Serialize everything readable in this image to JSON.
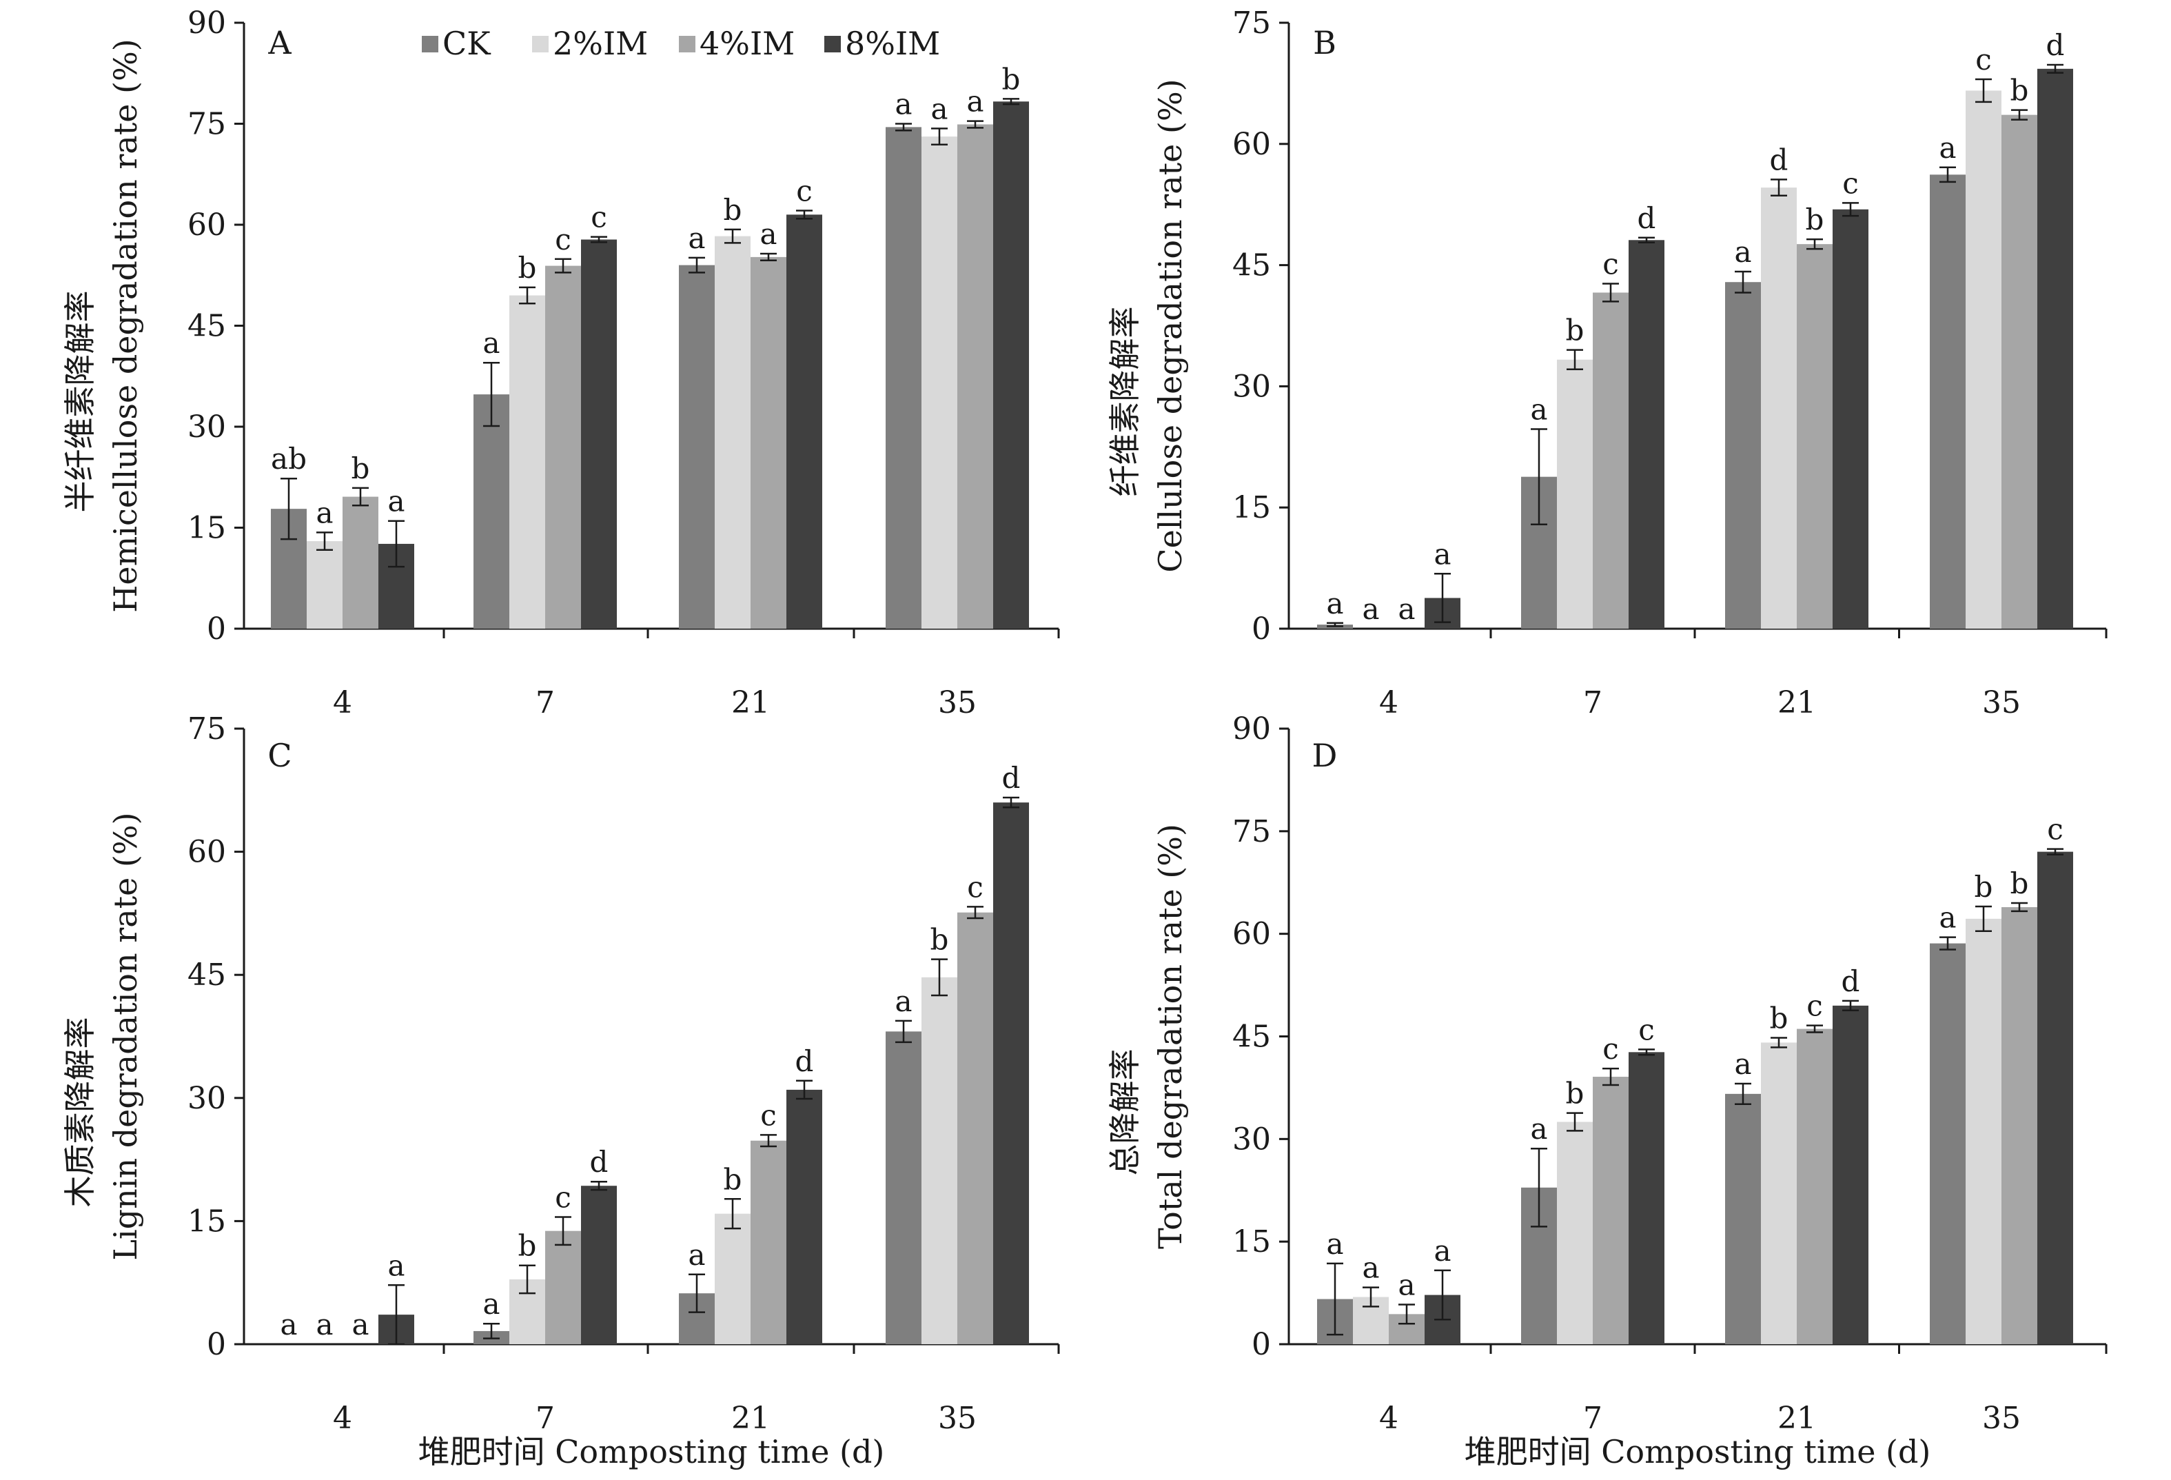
{
  "legend": [
    "CK",
    "2%IM",
    "4%IM",
    "8%IM"
  ],
  "colors": {
    "CK": "#7f7f7f",
    "2%IM": "#d9d9d9",
    "4%IM": "#a6a6a6",
    "8%IM": "#404040",
    "axis": "#1a1a1a"
  },
  "chart_data": [
    {
      "type": "bar",
      "panel_label": "A",
      "categories": [
        "4",
        "7",
        "21",
        "35"
      ],
      "ylabel_cn": "半纤维素降解率",
      "ylabel_en": "Hemicellulose degradation rate (%)",
      "xlabel": "",
      "ylim": [
        0,
        90
      ],
      "yticks": [
        0,
        15,
        30,
        45,
        60,
        75,
        90
      ],
      "series": [
        {
          "name": "CK",
          "values": [
            17.8,
            34.8,
            54.0,
            74.5
          ],
          "errors": [
            4.5,
            4.7,
            1.1,
            0.5
          ],
          "letters": [
            "ab",
            "a",
            "a",
            "a"
          ]
        },
        {
          "name": "2%IM",
          "values": [
            13.0,
            49.5,
            58.3,
            73.1
          ],
          "errors": [
            1.3,
            1.2,
            1.0,
            1.2
          ],
          "letters": [
            "a",
            "b",
            "b",
            "a"
          ]
        },
        {
          "name": "4%IM",
          "values": [
            19.6,
            53.9,
            55.2,
            74.9
          ],
          "errors": [
            1.3,
            1.0,
            0.5,
            0.5
          ],
          "letters": [
            "b",
            "c",
            "a",
            "a"
          ]
        },
        {
          "name": "8%IM",
          "values": [
            12.6,
            57.8,
            61.5,
            78.3
          ],
          "errors": [
            3.4,
            0.4,
            0.6,
            0.4
          ],
          "letters": [
            "a",
            "c",
            "c",
            "b"
          ]
        }
      ]
    },
    {
      "type": "bar",
      "panel_label": "B",
      "categories": [
        "4",
        "7",
        "21",
        "35"
      ],
      "ylabel_cn": "纤维素降解率",
      "ylabel_en": "Cellulose degradation rate (%)",
      "xlabel": "",
      "ylim": [
        0,
        75
      ],
      "yticks": [
        0,
        15,
        30,
        45,
        60,
        75
      ],
      "series": [
        {
          "name": "CK",
          "values": [
            0.5,
            18.8,
            42.9,
            56.2
          ],
          "errors": [
            0.2,
            5.9,
            1.3,
            0.9
          ],
          "letters": [
            "a",
            "a",
            "a",
            "a"
          ]
        },
        {
          "name": "2%IM",
          "values": [
            0,
            33.3,
            54.6,
            66.6
          ],
          "errors": [
            0,
            1.2,
            1.0,
            1.4
          ],
          "letters": [
            "a",
            "b",
            "d",
            "c"
          ]
        },
        {
          "name": "4%IM",
          "values": [
            0,
            41.6,
            47.6,
            63.6
          ],
          "errors": [
            0,
            1.1,
            0.6,
            0.6
          ],
          "letters": [
            "a",
            "c",
            "b",
            "b"
          ]
        },
        {
          "name": "8%IM",
          "values": [
            3.8,
            48.1,
            51.9,
            69.3
          ],
          "errors": [
            3.0,
            0.3,
            0.8,
            0.5
          ],
          "letters": [
            "a",
            "d",
            "c",
            "d"
          ]
        }
      ]
    },
    {
      "type": "bar",
      "panel_label": "C",
      "categories": [
        "4",
        "7",
        "21",
        "35"
      ],
      "ylabel_cn": "木质素降解率",
      "ylabel_en": "Lignin degradation rate (%)",
      "xlabel": "堆肥时间 Composting time (d)",
      "ylim": [
        0,
        75
      ],
      "yticks": [
        0,
        15,
        30,
        45,
        60,
        75
      ],
      "series": [
        {
          "name": "CK",
          "values": [
            0,
            1.6,
            6.2,
            38.1
          ],
          "errors": [
            0,
            0.9,
            2.3,
            1.3
          ],
          "letters": [
            "a",
            "a",
            "a",
            "a"
          ]
        },
        {
          "name": "2%IM",
          "values": [
            0,
            7.9,
            15.9,
            44.7
          ],
          "errors": [
            0,
            1.7,
            1.8,
            2.2
          ],
          "letters": [
            "a",
            "b",
            "b",
            "b"
          ]
        },
        {
          "name": "4%IM",
          "values": [
            0,
            13.8,
            24.8,
            52.6
          ],
          "errors": [
            0,
            1.7,
            0.7,
            0.7
          ],
          "letters": [
            "a",
            "c",
            "c",
            "c"
          ]
        },
        {
          "name": "8%IM",
          "values": [
            3.6,
            19.3,
            31.0,
            66.0
          ],
          "errors": [
            3.6,
            0.5,
            1.1,
            0.6
          ],
          "letters": [
            "a",
            "d",
            "d",
            "d"
          ]
        }
      ]
    },
    {
      "type": "bar",
      "panel_label": "D",
      "categories": [
        "4",
        "7",
        "21",
        "35"
      ],
      "ylabel_cn": "总降解率",
      "ylabel_en": "Total degradation rate (%)",
      "xlabel": "堆肥时间 Composting time (d)",
      "ylim": [
        0,
        90
      ],
      "yticks": [
        0,
        15,
        30,
        45,
        60,
        75,
        90
      ],
      "series": [
        {
          "name": "CK",
          "values": [
            6.6,
            22.9,
            36.6,
            58.6
          ],
          "errors": [
            5.2,
            5.7,
            1.5,
            0.9
          ],
          "letters": [
            "a",
            "a",
            "a",
            "a"
          ]
        },
        {
          "name": "2%IM",
          "values": [
            6.9,
            32.5,
            44.1,
            62.2
          ],
          "errors": [
            1.4,
            1.3,
            0.7,
            1.8
          ],
          "letters": [
            "a",
            "b",
            "b",
            "b"
          ]
        },
        {
          "name": "4%IM",
          "values": [
            4.4,
            39.1,
            46.1,
            63.9
          ],
          "errors": [
            1.4,
            1.2,
            0.5,
            0.6
          ],
          "letters": [
            "a",
            "c",
            "c",
            "b"
          ]
        },
        {
          "name": "8%IM",
          "values": [
            7.2,
            42.7,
            49.5,
            72.0
          ],
          "errors": [
            3.6,
            0.4,
            0.7,
            0.4
          ],
          "letters": [
            "a",
            "c",
            "d",
            "c"
          ]
        }
      ]
    }
  ]
}
